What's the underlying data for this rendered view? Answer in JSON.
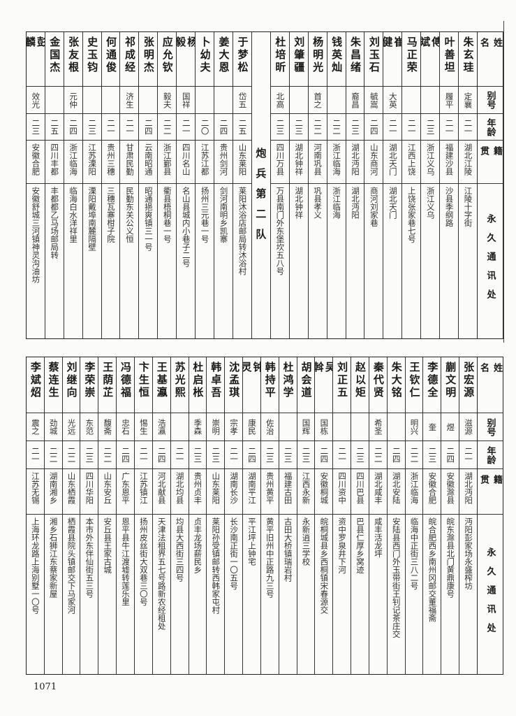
{
  "headers": {
    "name": "姓名",
    "alias": "别号",
    "age": "年龄",
    "native": "籍贯",
    "address": "永久通讯处"
  },
  "top_table": {
    "section_label": "炮兵第二队",
    "rows_before_section": [
      {
        "name": "朱玄珪",
        "alias": "定襄",
        "age": "二一",
        "native": "湖北江陵",
        "address": "江陵十字街"
      },
      {
        "name": "叶善坦",
        "alias": "履平",
        "age": "二一",
        "native": "福建沙县",
        "address": "沙县季纲路"
      },
      {
        "name": "傅斌",
        "alias": "",
        "age": "二三",
        "native": "浙江义乌",
        "address": "浙江义乌"
      },
      {
        "name": "马正荣",
        "alias": "",
        "age": "二一",
        "native": "江西上饶",
        "address": "上饶张家巷七号"
      },
      {
        "name": "崔健",
        "alias": "大英",
        "age": "二一",
        "native": "湖北天门",
        "address": "湖北天门"
      },
      {
        "name": "刘玉石",
        "alias": "毓嵩",
        "age": "二四",
        "native": "山东商河",
        "address": "商河刘家巷"
      },
      {
        "name": "朱昌绪",
        "alias": "裔昌",
        "age": "二三",
        "native": "湖北沔阳",
        "address": "湖北沔阳"
      },
      {
        "name": "钱英灿",
        "alias": "",
        "age": "二二",
        "native": "浙江临海",
        "address": "浙江临海"
      },
      {
        "name": "杨明光",
        "alias": "首之",
        "age": "二二",
        "native": "河南巩县",
        "address": "巩县孝义"
      },
      {
        "name": "刘肇疆",
        "alias": "",
        "age": "二三",
        "native": "湖北钟祥",
        "address": "湖北钟祥"
      },
      {
        "name": "杜培昕",
        "alias": "北高",
        "age": "二三",
        "native": "四川万县",
        "address": "万县南门外东堡坎五八号"
      }
    ],
    "rows_after_section": [
      {
        "name": "于梦松",
        "alias": "岱五",
        "age": "二五",
        "native": "山东莱阳",
        "address": "莱阳沐浴店邮局转沐浴村"
      },
      {
        "name": "姜大恩",
        "alias": "",
        "age": "二四",
        "native": "贵州剑河",
        "address": "剑河南明乡凯寨"
      },
      {
        "name": "卜幼夫",
        "alias": "",
        "age": "二〇",
        "native": "江苏江都",
        "address": "扬州三元巷一号"
      },
      {
        "name": "杨毅",
        "alias": "国祥",
        "age": "二一",
        "native": "四川名山",
        "address": "名山县城内小巷子二号"
      },
      {
        "name": "应允钦",
        "alias": "毅夫",
        "age": "二二",
        "native": "浙江鄞县",
        "address": "衢县梧桐巷一号"
      },
      {
        "name": "张明杰",
        "alias": "",
        "age": "二四",
        "native": "云南昭通",
        "address": "昭通挹爽镇三一号"
      },
      {
        "name": "祁成经",
        "alias": "济生",
        "age": "二一",
        "native": "甘肃民勤",
        "address": "民勤东关公义恒"
      },
      {
        "name": "何通俊",
        "alias": "",
        "age": "二一",
        "native": "贵州三穗",
        "address": "三穗瓦寨柑子院"
      },
      {
        "name": "史玉钧",
        "alias": "",
        "age": "二三",
        "native": "江苏溧阳",
        "address": "溧阳戴埠南麓隔壁"
      },
      {
        "name": "张友根",
        "alias": "元仲",
        "age": "二四",
        "native": "浙江临海",
        "address": "临海白水洋祥里"
      },
      {
        "name": "金国杰",
        "alias": "",
        "age": "二五",
        "native": "四川丰都",
        "address": "丰都都乙马场邮局转"
      },
      {
        "name": "彭麟",
        "alias": "效光",
        "age": "二三",
        "native": "安徽合肥",
        "address": "安徽舒城三河镇神灵沟油坊"
      }
    ]
  },
  "bottom_table": {
    "rows": [
      {
        "name": "张宏源",
        "alias": "滋源",
        "age": "二一",
        "native": "湖北沔阳",
        "address": "沔阳彭家场永盛榨坊"
      },
      {
        "name": "蒯文明",
        "alias": "煜",
        "age": "二四",
        "native": "安徽滁县",
        "address": "皖东滁县北门黄鼎康号"
      },
      {
        "name": "李德全",
        "alias": "奎",
        "age": "二三",
        "native": "安徽合肥",
        "address": "皖合肥西乡南州冈邮交董福斋"
      },
      {
        "name": "王钦仁",
        "alias": "明兴",
        "age": "二二",
        "native": "浙江临海",
        "address": "临海中正街三八二号"
      },
      {
        "name": "朱大铭",
        "alias": "",
        "age": "二四",
        "native": "湖北安陆",
        "address": "安陆县西门外玉带街王钊记茶庄交"
      },
      {
        "name": "秦代贤",
        "alias": "希圣",
        "age": "二二",
        "native": "湖北咸丰",
        "address": "咸丰活龙坪"
      },
      {
        "name": "赵以矩",
        "alias": "",
        "age": "二三",
        "native": "四川巴县",
        "address": "巴县仁厚乡窝迹"
      },
      {
        "name": "刘正五",
        "alias": "",
        "age": "二一",
        "native": "四川资中",
        "address": "资中罗泉井下河"
      },
      {
        "name": "吴斡",
        "alias": "国栋",
        "age": "二四",
        "native": "安徽桐城",
        "address": "皖桐城县乡西桐镇宋春源交"
      },
      {
        "name": "胡会道",
        "alias": "国辉",
        "age": "二三",
        "native": "江西永新",
        "address": "永新逍三学校"
      },
      {
        "name": "杜鸿学",
        "alias": "",
        "age": "二三",
        "native": "福建古田",
        "address": "古田大桥镇瑞岩村"
      },
      {
        "name": "韩持平",
        "alias": "佐治",
        "age": "二三",
        "native": "贵州黄平",
        "address": "黄平旧州中正路九三号"
      },
      {
        "name": "钟灵",
        "alias": "康民",
        "age": "二四",
        "native": "湖南平江",
        "address": "平江坪上钟宅"
      },
      {
        "name": "沈孟琪",
        "alias": "宗孝",
        "age": "二一",
        "native": "湖南长沙",
        "address": "长沙南正街一〇五号"
      },
      {
        "name": "韩卓吾",
        "alias": "崇明",
        "age": "二三",
        "native": "山东莱阳",
        "address": "莱阳孙受镇邮转西韩家屯村"
      },
      {
        "name": "杜启枨",
        "alias": "季森",
        "age": "二三",
        "native": "贵州贞丰",
        "address": "贞丰龙场薪民乡"
      },
      {
        "name": "苏光熙",
        "alias": "",
        "age": "二一",
        "native": "湖北均县",
        "address": "均县大西街三四号"
      },
      {
        "name": "王基瀛",
        "alias": "浩瀛",
        "age": "二四",
        "native": "河北献县",
        "address": "天津法租界五七号路新农经租处"
      },
      {
        "name": "卞生恒",
        "alias": "惕生",
        "age": "二一",
        "native": "江苏镇江",
        "address": "扬州皮丝街大双巷三〇号"
      },
      {
        "name": "冯德福",
        "alias": "忠石",
        "age": "二四",
        "native": "广东恩平",
        "address": "恩平县牛江渡墟转莲乐里"
      },
      {
        "name": "王荫芷",
        "alias": "馥斋",
        "age": "二二",
        "native": "山东安丘",
        "address": "安丘县王家古城"
      },
      {
        "name": "李荣崇",
        "alias": "东范",
        "age": "二三",
        "native": "四川华阳",
        "address": "本市外东伴仙街五三号"
      },
      {
        "name": "刘继向",
        "alias": "光远",
        "age": "二二",
        "native": "山东栖霞",
        "address": "栖霞县院头镇邮交下马家河"
      },
      {
        "name": "蔡连生",
        "alias": "劲城",
        "age": "二二",
        "native": "湖南湘乡",
        "address": "湘乡石狮江东蔡家新屋"
      },
      {
        "name": "李斌炤",
        "alias": "震之",
        "age": "二一",
        "native": "江苏无锡",
        "address": "上海环龙路上海别墅一〇号"
      }
    ]
  },
  "page_number": "1071"
}
